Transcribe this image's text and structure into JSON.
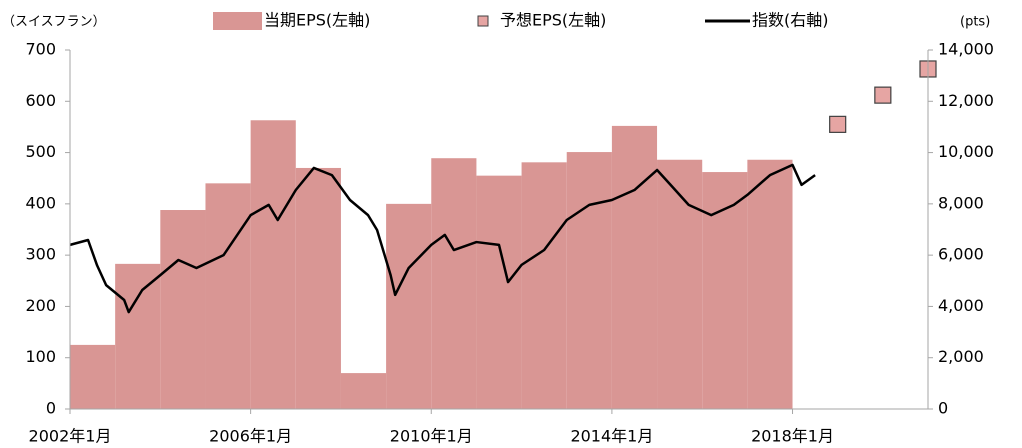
{
  "chart_data": {
    "type": "combo",
    "y_label": "（スイスフラン）",
    "y2_label": "(pts)",
    "xlim": [
      2002,
      2021
    ],
    "xticks": [
      {
        "value": 2002,
        "label": "2002年1月"
      },
      {
        "value": 2006,
        "label": "2006年1月"
      },
      {
        "value": 2010,
        "label": "2010年1月"
      },
      {
        "value": 2014,
        "label": "2014年1月"
      },
      {
        "value": 2018,
        "label": "2018年1月"
      }
    ],
    "ylim": [
      0,
      700
    ],
    "yticks": [
      0,
      100,
      200,
      300,
      400,
      500,
      600,
      700
    ],
    "y2lim": [
      0,
      14000
    ],
    "y2ticks": [
      0,
      {
        "value": 2000,
        "label": "2,000"
      },
      {
        "value": 4000,
        "label": "4,000"
      },
      {
        "value": 6000,
        "label": "6,000"
      },
      {
        "value": 8000,
        "label": "8,000"
      },
      {
        "value": 10000,
        "label": "10,000"
      },
      {
        "value": 12000,
        "label": "12,000"
      },
      {
        "value": 14000,
        "label": "14,000"
      }
    ],
    "series": [
      {
        "name": "当期EPS(左軸)",
        "type": "bar",
        "color": "#d99694",
        "x": [
          2002,
          2003,
          2004,
          2005,
          2006,
          2007,
          2008,
          2009,
          2010,
          2011,
          2012,
          2013,
          2014,
          2015,
          2016,
          2017
        ],
        "values": [
          125,
          283,
          388,
          440,
          563,
          470,
          70,
          400,
          489,
          455,
          481,
          501,
          552,
          486,
          462,
          486
        ]
      },
      {
        "name": "予想EPS(左軸)",
        "type": "scatter",
        "color": "#e6a5a3",
        "x": [
          2019,
          2020,
          2021
        ],
        "values": [
          555,
          612,
          663
        ]
      },
      {
        "name": "指数(右軸)",
        "type": "line",
        "color": "#000000",
        "axis": "y2",
        "x": [
          2002.0,
          2002.4,
          2002.6,
          2002.8,
          2003.2,
          2003.3,
          2003.6,
          2004.0,
          2004.4,
          2004.8,
          2005.4,
          2006.0,
          2006.4,
          2006.6,
          2007.0,
          2007.4,
          2007.8,
          2008.2,
          2008.6,
          2008.8,
          2009.1,
          2009.2,
          2009.5,
          2010.0,
          2010.3,
          2010.5,
          2011.0,
          2011.5,
          2011.7,
          2012.0,
          2012.5,
          2013.0,
          2013.5,
          2014.0,
          2014.5,
          2015.0,
          2015.3,
          2015.7,
          2016.2,
          2016.7,
          2017.0,
          2017.5,
          2018.0,
          2018.2,
          2018.5
        ],
        "values": [
          6400,
          6590,
          5600,
          4830,
          4250,
          3780,
          4640,
          5220,
          5810,
          5500,
          6000,
          7560,
          7960,
          7370,
          8540,
          9400,
          9120,
          8150,
          7560,
          6980,
          5220,
          4450,
          5500,
          6400,
          6790,
          6200,
          6510,
          6400,
          4950,
          5620,
          6200,
          7370,
          7960,
          8150,
          8540,
          9320,
          8740,
          7960,
          7560,
          7960,
          8350,
          9120,
          9520,
          8740,
          9120
        ]
      }
    ]
  }
}
